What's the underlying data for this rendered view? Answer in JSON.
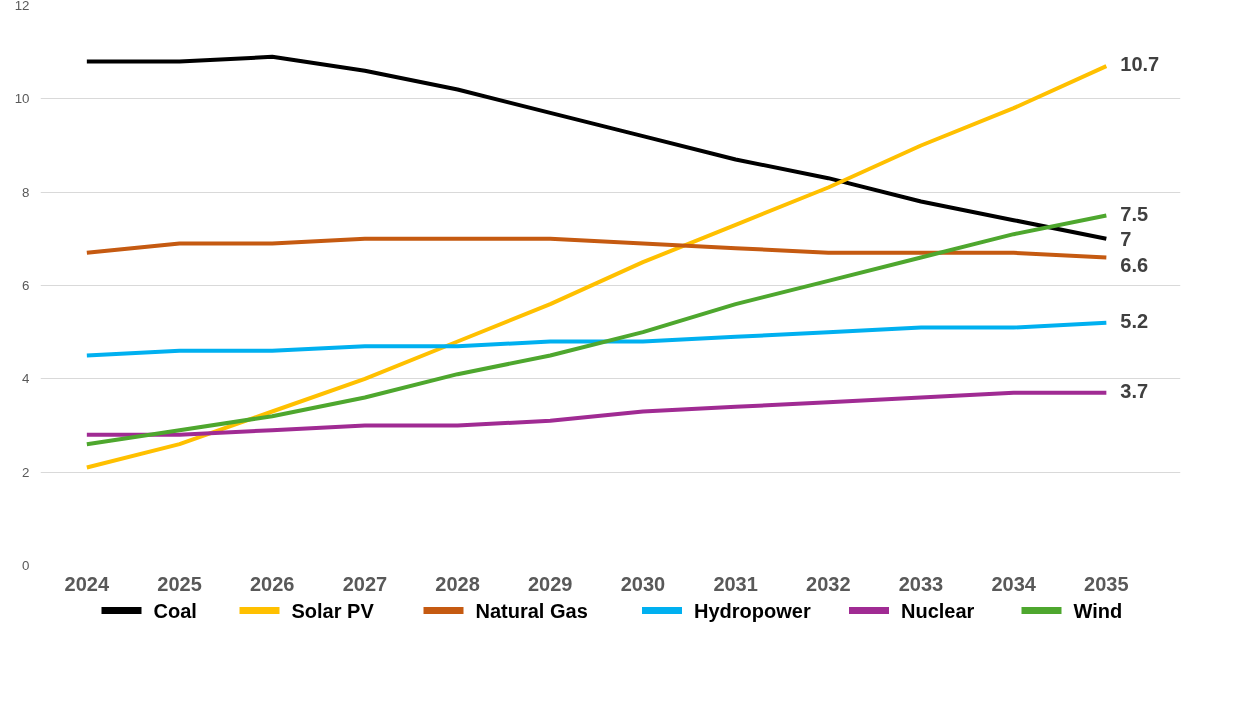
{
  "chart_data": {
    "type": "line",
    "categories": [
      "2024",
      "2025",
      "2026",
      "2027",
      "2028",
      "2029",
      "2030",
      "2031",
      "2032",
      "2033",
      "2034",
      "2035"
    ],
    "ylim": [
      0,
      12
    ],
    "yticks": [
      0,
      2,
      4,
      6,
      8,
      10,
      12
    ],
    "grid": "y",
    "legend": "bottom",
    "marker": "none",
    "line_style": "solid",
    "series": [
      {
        "name": "Coal",
        "color": "#000000",
        "values": [
          10.8,
          10.8,
          10.9,
          10.6,
          10.2,
          9.7,
          9.2,
          8.7,
          8.3,
          7.8,
          7.4,
          7.0
        ],
        "value_labels": [
          null,
          null,
          null,
          null,
          null,
          null,
          null,
          null,
          null,
          null,
          null,
          "7"
        ]
      },
      {
        "name": "Solar PV",
        "color": "#ffc000",
        "values": [
          2.1,
          2.6,
          3.3,
          4.0,
          4.8,
          5.6,
          6.5,
          7.3,
          8.1,
          9.0,
          9.8,
          10.7
        ],
        "value_labels": [
          null,
          null,
          null,
          null,
          null,
          null,
          null,
          null,
          null,
          null,
          null,
          "10.7"
        ]
      },
      {
        "name": "Natural Gas",
        "color": "#c55a11",
        "values": [
          6.7,
          6.9,
          6.9,
          7.0,
          7.0,
          7.0,
          6.9,
          6.8,
          6.7,
          6.7,
          6.7,
          6.6
        ],
        "value_labels": [
          null,
          null,
          null,
          null,
          null,
          null,
          null,
          null,
          null,
          null,
          null,
          "6.6"
        ]
      },
      {
        "name": "Hydropower",
        "color": "#00b0f0",
        "values": [
          4.5,
          4.6,
          4.6,
          4.7,
          4.7,
          4.8,
          4.8,
          4.9,
          5.0,
          5.1,
          5.1,
          5.2
        ],
        "value_labels": [
          null,
          null,
          null,
          null,
          null,
          null,
          null,
          null,
          null,
          null,
          null,
          "5.2"
        ]
      },
      {
        "name": "Nuclear",
        "color": "#a02b93",
        "values": [
          2.8,
          2.8,
          2.9,
          3.0,
          3.0,
          3.1,
          3.3,
          3.4,
          3.5,
          3.6,
          3.7,
          3.7
        ],
        "value_labels": [
          null,
          null,
          null,
          null,
          null,
          null,
          null,
          null,
          null,
          null,
          null,
          "3.7"
        ]
      },
      {
        "name": "Wind",
        "color": "#4ea72e",
        "values": [
          2.6,
          2.9,
          3.2,
          3.6,
          4.1,
          4.5,
          5.0,
          5.6,
          6.1,
          6.6,
          7.1,
          7.5
        ],
        "value_labels": [
          null,
          null,
          null,
          null,
          null,
          null,
          null,
          null,
          null,
          null,
          null,
          "7.5"
        ]
      }
    ]
  }
}
